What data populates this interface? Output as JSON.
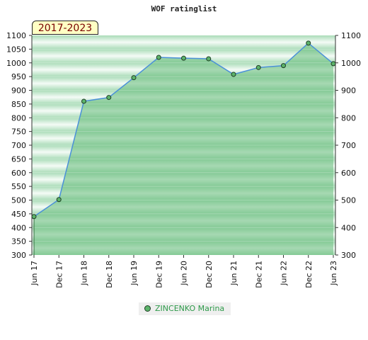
{
  "chart_data": {
    "type": "area",
    "title": "WOF ratinglist",
    "period": "2017-2023",
    "categories": [
      "Jun 17",
      "Dec 17",
      "Jun 18",
      "Dec 18",
      "Jun 19",
      "Dec 19",
      "Jun 20",
      "Dec 20",
      "Jun 21",
      "Dec 21",
      "Jun 22",
      "Dec 22",
      "Jun 23"
    ],
    "series": [
      {
        "name": "ZINCENKO Marina",
        "values": [
          440,
          502,
          860,
          874,
          946,
          1020,
          1017,
          1015,
          958,
          983,
          990,
          1072,
          997
        ]
      }
    ],
    "ylim": [
      300,
      1100
    ],
    "yticks_left": [
      300,
      350,
      400,
      450,
      500,
      550,
      600,
      650,
      700,
      750,
      800,
      850,
      900,
      950,
      1000,
      1050,
      1100
    ],
    "yticks_right": [
      300,
      400,
      500,
      600,
      700,
      800,
      900,
      1000,
      1100
    ],
    "colors": {
      "line": "#4a90d9",
      "marker_fill": "#5cb46b",
      "marker_stroke": "#1f3f25",
      "area_fill": "#66bb7a",
      "band_dark": "#b9e0c4",
      "band_light": "#f2faf4"
    },
    "legend_position": "bottom-center"
  }
}
